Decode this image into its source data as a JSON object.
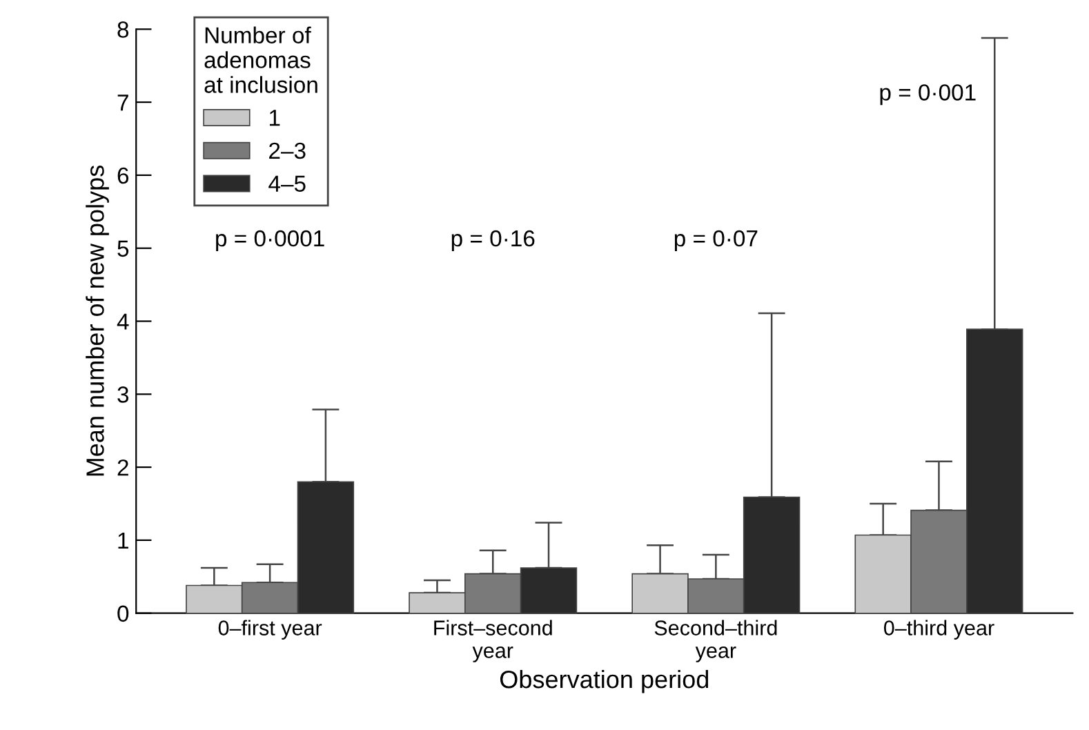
{
  "chart_data": {
    "type": "bar",
    "xlabel": "Observation period",
    "ylabel": "Mean number of new polyps",
    "legend_title": "Number of\nadenomas\nat inclusion",
    "categories": [
      "0–first year",
      "First–second\nyear",
      "Second–third\nyear",
      "0–third year"
    ],
    "series": [
      {
        "name": "1",
        "color": "#c8c8c8",
        "values": [
          0.38,
          0.28,
          0.54,
          1.07
        ],
        "errors": [
          [
            0.38,
            0.62
          ],
          [
            0.28,
            0.45
          ],
          [
            0.54,
            0.93
          ],
          [
            1.07,
            1.5
          ]
        ]
      },
      {
        "name": "2–3",
        "color": "#7a7a7a",
        "values": [
          0.42,
          0.54,
          0.47,
          1.41
        ],
        "errors": [
          [
            0.42,
            0.67
          ],
          [
            0.54,
            0.86
          ],
          [
            0.47,
            0.8
          ],
          [
            1.41,
            2.08
          ]
        ]
      },
      {
        "name": "4–5",
        "color": "#2a2a2a",
        "values": [
          1.8,
          0.62,
          1.59,
          3.89
        ],
        "errors": [
          [
            1.8,
            2.79
          ],
          [
            0.62,
            1.24
          ],
          [
            1.59,
            4.11
          ],
          [
            3.89,
            7.88
          ]
        ]
      }
    ],
    "ylim": [
      0,
      8
    ],
    "yticks": [
      0,
      1,
      2,
      3,
      4,
      5,
      6,
      7,
      8
    ],
    "annotations": [
      "p = 0·0001",
      "p = 0·16",
      "p = 0·07",
      "p = 0·001"
    ],
    "legend": "top left",
    "grid": false
  }
}
